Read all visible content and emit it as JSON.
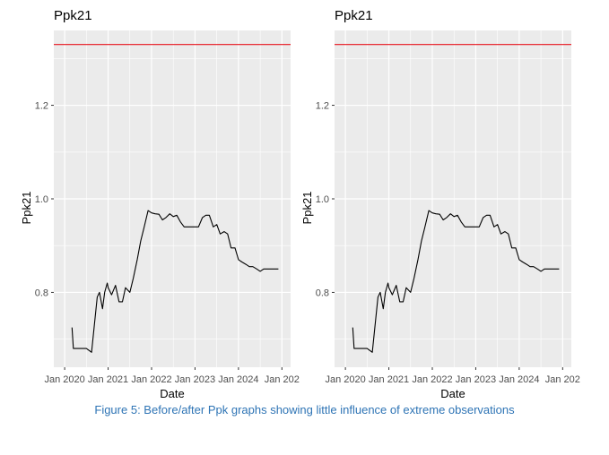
{
  "caption": "Figure 5: Before/after Ppk graphs showing little influence of extreme observations",
  "colors": {
    "panel_bg": "#ebebeb",
    "grid": "#ffffff",
    "line": "#000000",
    "reference": "#e8141e",
    "caption": "#2e74b5"
  },
  "chart_data": [
    {
      "type": "line",
      "title": "Ppk21",
      "xlabel": "Date",
      "ylabel": "Ppk21",
      "x_ticks": [
        "Jan 2020",
        "Jan 2021",
        "Jan 2022",
        "Jan 2023",
        "Jan 2024",
        "Jan 202"
      ],
      "y_ticks": [
        "0.8",
        "1.0",
        "1.2"
      ],
      "xlim": [
        2019.75,
        2025.2
      ],
      "ylim": [
        0.64,
        1.36
      ],
      "grid": true,
      "reference_line": 1.33,
      "series": [
        {
          "x": [
            2020.17,
            2020.2,
            2020.37,
            2020.5,
            2020.62,
            2020.75,
            2020.8,
            2020.87,
            2020.92,
            2020.98,
            2021.0,
            2021.08,
            2021.17,
            2021.25,
            2021.33,
            2021.4,
            2021.5,
            2021.58,
            2021.67,
            2021.75,
            2021.83,
            2021.92,
            2022.0,
            2022.08,
            2022.17,
            2022.25,
            2022.33,
            2022.42,
            2022.5,
            2022.58,
            2022.67,
            2022.75,
            2022.83,
            2022.92,
            2023.0,
            2023.08,
            2023.17,
            2023.25,
            2023.33,
            2023.42,
            2023.5,
            2023.58,
            2023.67,
            2023.75,
            2023.83,
            2023.92,
            2024.0,
            2024.08,
            2024.17,
            2024.25,
            2024.33,
            2024.42,
            2024.5,
            2024.58,
            2024.67,
            2024.75,
            2024.83,
            2024.92
          ],
          "y": [
            0.725,
            0.68,
            0.68,
            0.68,
            0.672,
            0.79,
            0.8,
            0.765,
            0.8,
            0.82,
            0.81,
            0.795,
            0.815,
            0.78,
            0.78,
            0.81,
            0.8,
            0.83,
            0.87,
            0.91,
            0.94,
            0.975,
            0.97,
            0.968,
            0.967,
            0.955,
            0.96,
            0.968,
            0.962,
            0.965,
            0.95,
            0.94,
            0.94,
            0.94,
            0.94,
            0.94,
            0.96,
            0.965,
            0.965,
            0.94,
            0.945,
            0.925,
            0.93,
            0.925,
            0.895,
            0.895,
            0.87,
            0.865,
            0.86,
            0.855,
            0.855,
            0.85,
            0.845,
            0.85,
            0.85,
            0.85,
            0.85,
            0.85
          ]
        }
      ]
    },
    {
      "type": "line",
      "title": "Ppk21",
      "xlabel": "Date",
      "ylabel": "Ppk21",
      "x_ticks": [
        "Jan 2020",
        "Jan 2021",
        "Jan 2022",
        "Jan 2023",
        "Jan 2024",
        "Jan 202"
      ],
      "y_ticks": [
        "0.8",
        "1.0",
        "1.2"
      ],
      "xlim": [
        2019.75,
        2025.2
      ],
      "ylim": [
        0.64,
        1.36
      ],
      "grid": true,
      "reference_line": 1.33,
      "series": [
        {
          "x": [
            2020.17,
            2020.2,
            2020.37,
            2020.5,
            2020.62,
            2020.75,
            2020.8,
            2020.87,
            2020.92,
            2020.98,
            2021.0,
            2021.08,
            2021.17,
            2021.25,
            2021.33,
            2021.4,
            2021.5,
            2021.58,
            2021.67,
            2021.75,
            2021.83,
            2021.92,
            2022.0,
            2022.08,
            2022.17,
            2022.25,
            2022.33,
            2022.42,
            2022.5,
            2022.58,
            2022.67,
            2022.75,
            2022.83,
            2022.92,
            2023.0,
            2023.08,
            2023.17,
            2023.25,
            2023.33,
            2023.42,
            2023.5,
            2023.58,
            2023.67,
            2023.75,
            2023.83,
            2023.92,
            2024.0,
            2024.08,
            2024.17,
            2024.25,
            2024.33,
            2024.42,
            2024.5,
            2024.58,
            2024.67,
            2024.75,
            2024.83,
            2024.92
          ],
          "y": [
            0.725,
            0.68,
            0.68,
            0.68,
            0.672,
            0.79,
            0.8,
            0.765,
            0.8,
            0.82,
            0.81,
            0.795,
            0.815,
            0.78,
            0.78,
            0.81,
            0.8,
            0.83,
            0.87,
            0.91,
            0.94,
            0.975,
            0.97,
            0.968,
            0.967,
            0.955,
            0.96,
            0.968,
            0.962,
            0.965,
            0.95,
            0.94,
            0.94,
            0.94,
            0.94,
            0.94,
            0.96,
            0.965,
            0.965,
            0.94,
            0.945,
            0.925,
            0.93,
            0.925,
            0.895,
            0.895,
            0.87,
            0.865,
            0.86,
            0.855,
            0.855,
            0.85,
            0.845,
            0.85,
            0.85,
            0.85,
            0.85,
            0.85
          ]
        }
      ]
    }
  ]
}
